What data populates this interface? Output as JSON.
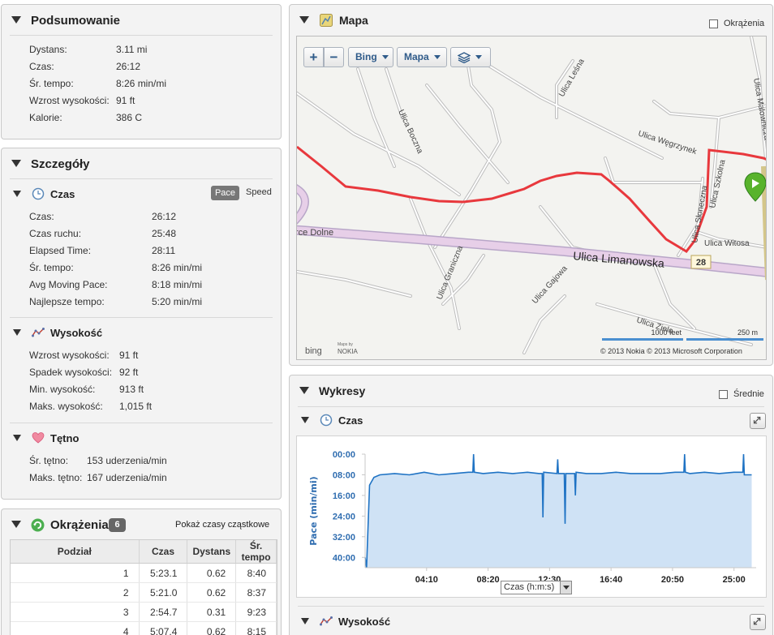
{
  "summary": {
    "title": "Podsumowanie",
    "rows": [
      {
        "label": "Dystans:",
        "value": "3.11 mi"
      },
      {
        "label": "Czas:",
        "value": "26:12"
      },
      {
        "label": "Śr. tempo:",
        "value": "8:26 min/mi"
      },
      {
        "label": "Wzrost wysokości:",
        "value": "91 ft"
      },
      {
        "label": "Kalorie:",
        "value": "386 C"
      }
    ]
  },
  "details": {
    "title": "Szczegóły",
    "time": {
      "title": "Czas",
      "toggle": {
        "pace": "Pace",
        "speed": "Speed"
      },
      "rows": [
        {
          "label": "Czas:",
          "value": "26:12"
        },
        {
          "label": "Czas ruchu:",
          "value": "25:48"
        },
        {
          "label": "Elapsed Time:",
          "value": "28:11"
        },
        {
          "label": "Śr. tempo:",
          "value": "8:26 min/mi"
        },
        {
          "label": "Avg Moving Pace:",
          "value": "8:18 min/mi"
        },
        {
          "label": "Najlepsze tempo:",
          "value": "5:20 min/mi"
        }
      ]
    },
    "elevation": {
      "title": "Wysokość",
      "rows": [
        {
          "label": "Wzrost wysokości:",
          "value": "91 ft"
        },
        {
          "label": "Spadek wysokości:",
          "value": "92 ft"
        },
        {
          "label": "Min. wysokość:",
          "value": "913 ft"
        },
        {
          "label": "Maks. wysokość:",
          "value": "1,015 ft"
        }
      ]
    },
    "hr": {
      "title": "Tętno",
      "rows": [
        {
          "label": "Śr. tętno:",
          "value": "153 uderzenia/min"
        },
        {
          "label": "Maks. tętno:",
          "value": "167 uderzenia/min"
        }
      ]
    }
  },
  "laps": {
    "title": "Okrążenia",
    "count": "6",
    "link": "Pokaż czasy cząstkowe",
    "headers": [
      "Podział",
      "Czas",
      "Dystans",
      "Śr. tempo"
    ],
    "rows": [
      [
        "1",
        "5:23.1",
        "0.62",
        "8:40"
      ],
      [
        "2",
        "5:21.0",
        "0.62",
        "8:37"
      ],
      [
        "3",
        "2:54.7",
        "0.31",
        "9:23"
      ],
      [
        "4",
        "5:07.4",
        "0.62",
        "8:15"
      ]
    ]
  },
  "map": {
    "title": "Mapa",
    "laps_checkbox": "Okrążenia",
    "zoom_in": "+",
    "zoom_out": "−",
    "provider_btn": "Bing",
    "type_btn": "Mapa",
    "streets": {
      "lesna": "Ulica Leśna",
      "boczna": "Ulica Boczna",
      "malownicza": "Ulica Malownicza",
      "wegrzynek": "Ulica Węgrzynek",
      "sloneczna": "Ulica Słoneczna",
      "szkolna": "Ulica Szkolna",
      "witosa": "Ulica Witosa",
      "dolne": "rce Dolne",
      "limanowska": "Ulica Limanowska",
      "graniczna": "Ulica Graniczna",
      "gajowa": "Ulica Gajowa",
      "zielona": "Ulica Zielo"
    },
    "road_number": "28",
    "scale_ft": "1000 feet",
    "scale_m": "250 m",
    "bing_logo": "bing",
    "maps_by": "Maps by",
    "nokia": "NOKIA",
    "copyright": "© 2013 Nokia   © 2013 Microsoft Corporation"
  },
  "charts": {
    "title": "Wykresy",
    "avg_checkbox": "Średnie",
    "time_title": "Czas",
    "elevation_title": "Wysokość",
    "x_select": "Czas (h:m:s)"
  },
  "chart_data": {
    "type": "area",
    "ylabel": "Pace (min/mi)",
    "y_inverted": true,
    "ylim": [
      0,
      44
    ],
    "yticks": [
      "00:00",
      "08:00",
      "16:00",
      "24:00",
      "32:00",
      "40:00"
    ],
    "xticks": [
      "04:10",
      "08:20",
      "12:30",
      "16:40",
      "20:50",
      "25:00"
    ],
    "x_unit": "min",
    "x": [
      0,
      0.1,
      0.3,
      0.6,
      1,
      2,
      3,
      4,
      5,
      6,
      7,
      7.3,
      7.35,
      7.4,
      8,
      9,
      10,
      11,
      11.8,
      12,
      12.05,
      12.1,
      13,
      13.05,
      13.1,
      13.3,
      13.5,
      13.55,
      13.6,
      14,
      14.2,
      14.25,
      14.3,
      15,
      16,
      17,
      18,
      19,
      20,
      21,
      21.6,
      21.65,
      21.7,
      22,
      23,
      24,
      25,
      25.6,
      25.65,
      25.7,
      26.2
    ],
    "values": [
      40,
      44,
      12,
      9,
      8,
      7.5,
      8,
      7,
      8,
      7.5,
      7,
      7,
      0,
      7,
      7.5,
      7,
      7.5,
      7,
      7.5,
      7.5,
      24.5,
      7,
      7.5,
      2,
      7.5,
      7.5,
      7.5,
      27,
      7.5,
      7.5,
      7.5,
      16,
      7,
      7.5,
      7.5,
      7,
      7.5,
      7.5,
      7.5,
      7,
      7,
      0,
      7,
      7.5,
      7,
      7.5,
      7,
      7,
      0,
      8,
      8
    ]
  }
}
